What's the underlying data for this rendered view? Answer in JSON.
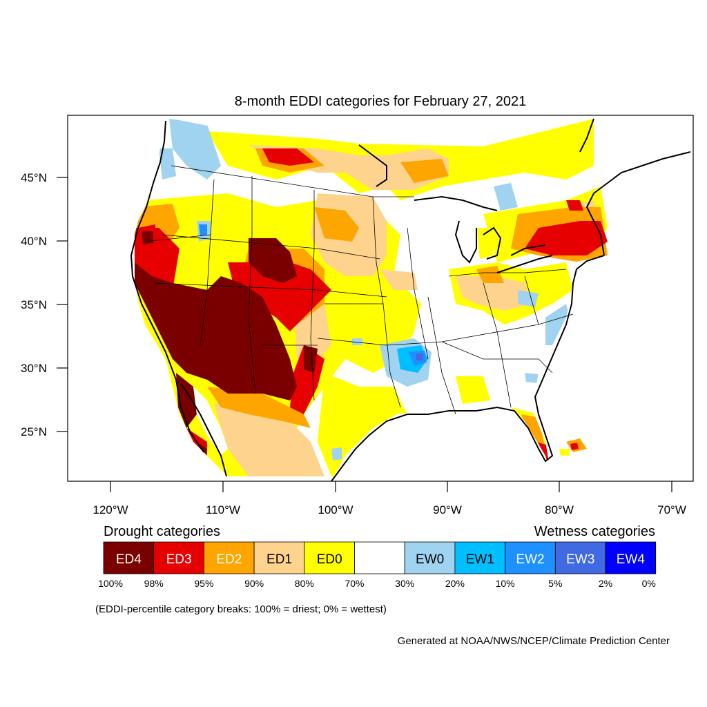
{
  "title": "8-month EDDI categories for February 27, 2021",
  "map": {
    "lat_labels": [
      "45°N",
      "40°N",
      "35°N",
      "30°N",
      "25°N"
    ],
    "lon_labels": [
      "120°W",
      "110°W",
      "100°W",
      "90°W",
      "80°W",
      "70°W"
    ],
    "lat_values": [
      45,
      40,
      35,
      30,
      25
    ],
    "lon_values": [
      -120,
      -110,
      -100,
      -90,
      -80,
      -70
    ]
  },
  "legend": {
    "drought_heading": "Drought categories",
    "wetness_heading": "Wetness categories",
    "categories": [
      {
        "label": "ED4",
        "color": "#7a0000",
        "text_color": "#ffffff"
      },
      {
        "label": "ED3",
        "color": "#e60000",
        "text_color": "#ffffff"
      },
      {
        "label": "ED2",
        "color": "#ffa500",
        "text_color": "#ffffff"
      },
      {
        "label": "ED1",
        "color": "#fdd38e",
        "text_color": "#000000"
      },
      {
        "label": "ED0",
        "color": "#ffff00",
        "text_color": "#000000"
      },
      {
        "label": "",
        "color": "#ffffff",
        "text_color": "#000000"
      },
      {
        "label": "EW0",
        "color": "#9fd3f0",
        "text_color": "#000000"
      },
      {
        "label": "EW1",
        "color": "#00bfff",
        "text_color": "#000000"
      },
      {
        "label": "EW2",
        "color": "#1e90ff",
        "text_color": "#ffffff"
      },
      {
        "label": "EW3",
        "color": "#4169e1",
        "text_color": "#ffffff"
      },
      {
        "label": "EW4",
        "color": "#0000ff",
        "text_color": "#ffffff"
      }
    ],
    "breaks": [
      "100%",
      "98%",
      "95%",
      "90%",
      "80%",
      "70%",
      "30%",
      "20%",
      "10%",
      "5%",
      "2%",
      "0%"
    ],
    "note": "(EDDI-percentile category breaks: 100% = driest; 0% = wettest)"
  },
  "credit": "Generated at NOAA/NWS/NCEP/Climate Prediction Center"
}
